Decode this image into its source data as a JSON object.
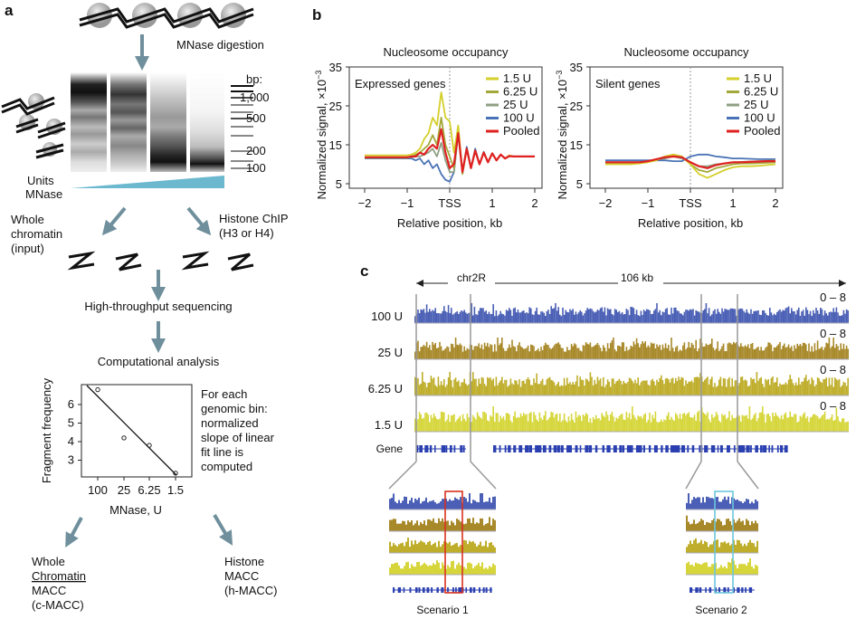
{
  "panel_a": {
    "label": "a",
    "step1": "MNase digestion",
    "ladder_title": "bp:",
    "ladder_marks": [
      "1,000",
      "500",
      "200",
      "100"
    ],
    "units_label": [
      "Units",
      "MNase"
    ],
    "input_label": [
      "Whole",
      "chromatin",
      "(input)"
    ],
    "chip_label": [
      "Histone ChIP",
      "(H3 or H4)"
    ],
    "step2": "High-throughput sequencing",
    "step3": "Computational analysis",
    "description": [
      "For each",
      "genomic bin:",
      "normalized",
      "slope of linear",
      "fit line is",
      "computed"
    ],
    "out_left": [
      "Whole",
      "Chromatin",
      "MACC",
      "(c-MACC)"
    ],
    "out_right": [
      "Histone",
      "MACC",
      "(h-MACC)"
    ],
    "colors": {
      "arrow": "#6f8f9c",
      "wedge": "#6bb8cf"
    }
  },
  "panel_b": {
    "label": "b"
  },
  "panel_c": {
    "label": "c",
    "chrom": "chr2R",
    "span": "106 kb",
    "tracks": [
      {
        "name": "100 U",
        "range": "0 – 8",
        "color": "#4a5fb5"
      },
      {
        "name": "25 U",
        "range": "0 – 8",
        "color": "#a8892a"
      },
      {
        "name": "6.25 U",
        "range": "0 – 8",
        "color": "#bfae2c"
      },
      {
        "name": "1.5 U",
        "range": "0 – 8",
        "color": "#d6d63c"
      }
    ],
    "gene_label": "Gene",
    "gene_color": "#2a3fb0",
    "scenario1": "Scenario 1",
    "scenario2": "Scenario 2",
    "scenario1_color": "#d9301e",
    "scenario2_color": "#6cc6dc"
  },
  "chart_data": [
    {
      "type": "scatter",
      "xlabel": "MNase, U",
      "ylabel": "Fragment frequency",
      "categories": [
        "100",
        "25",
        "6.25",
        "1.5"
      ],
      "values": [
        6.8,
        4.2,
        3.8,
        2.3
      ],
      "yticks": [
        3,
        4,
        5,
        6
      ],
      "fit_line": true
    },
    {
      "type": "line",
      "title": "Nucleosome occupancy",
      "annotation": "Expressed genes",
      "xlabel": "Relative position, kb",
      "ylabel": "Normalized signal, ×10",
      "ylabel_exp": "−3",
      "xticks": [
        "−2",
        "−1",
        "TSS",
        "1",
        "2"
      ],
      "yticks": [
        5,
        15,
        25,
        35
      ],
      "xlim": [
        -2,
        2
      ],
      "ylim": [
        5,
        35
      ],
      "legend": "top-right",
      "x_step": 0.1,
      "series": [
        {
          "name": "1.5 U",
          "color": "#d4cf2a",
          "values": [
            12.3,
            12.3,
            12.3,
            12.3,
            12.3,
            12.3,
            12.3,
            12.3,
            12.3,
            12.3,
            12.3,
            12.5,
            13,
            14,
            16.5,
            18,
            22,
            20,
            28.5,
            22,
            21,
            13,
            20,
            8,
            14,
            9,
            13.5,
            10,
            13,
            10.5,
            12.8,
            11,
            12.5,
            11.5,
            12.3,
            12,
            12,
            12,
            12,
            12,
            12
          ]
        },
        {
          "name": "6.25 U",
          "color": "#a3a83a",
          "values": [
            11.8,
            11.8,
            11.8,
            11.8,
            11.8,
            11.8,
            11.8,
            11.8,
            11.8,
            11.8,
            11.8,
            12,
            12.5,
            13,
            14,
            15,
            17.5,
            15,
            22,
            15,
            12,
            9,
            19,
            7.5,
            14,
            9,
            13.5,
            10,
            13,
            10.5,
            12.8,
            11,
            12.5,
            11.5,
            12.1,
            12,
            12,
            12,
            12,
            12,
            12
          ]
        },
        {
          "name": "25 U",
          "color": "#8fa084",
          "values": [
            11.6,
            11.6,
            11.6,
            11.6,
            11.6,
            11.6,
            11.6,
            11.6,
            11.6,
            11.6,
            11.6,
            11.8,
            12,
            12,
            12.5,
            13,
            14,
            12,
            15.5,
            11,
            8,
            8,
            18,
            7.8,
            14,
            9,
            13.5,
            10,
            13,
            10.5,
            12.8,
            11,
            12.5,
            11.5,
            12.1,
            12,
            12,
            12,
            12,
            12,
            12
          ]
        },
        {
          "name": "100 U",
          "color": "#4a73b5",
          "values": [
            11.5,
            11.5,
            11.5,
            11.5,
            11.5,
            11.5,
            11.5,
            11.5,
            11.5,
            11.5,
            11.5,
            11.5,
            11,
            11.5,
            10,
            11,
            9,
            10,
            7.5,
            6,
            5.5,
            8,
            18,
            8,
            14.5,
            9,
            14,
            10,
            13.2,
            10.5,
            12.8,
            11,
            12.5,
            11.5,
            12.2,
            12,
            12,
            12,
            12,
            12,
            12
          ]
        },
        {
          "name": "Pooled",
          "color": "#e02020",
          "values": [
            11.8,
            11.8,
            11.8,
            11.8,
            11.8,
            11.8,
            11.8,
            11.8,
            11.8,
            11.8,
            11.8,
            12,
            12,
            13,
            12.5,
            14,
            15,
            14,
            19,
            13,
            9,
            10,
            18,
            8,
            14,
            9,
            13.5,
            10,
            13,
            10.5,
            12.8,
            11,
            12.5,
            11.5,
            12.1,
            12,
            12,
            12,
            12,
            12,
            12
          ]
        }
      ]
    },
    {
      "type": "line",
      "title": "Nucleosome occupancy",
      "annotation": "Silent genes",
      "xlabel": "Relative position, kb",
      "ylabel": "Normalized signal, ×10",
      "ylabel_exp": "−3",
      "xticks": [
        "−2",
        "−1",
        "TSS",
        "1",
        "2"
      ],
      "yticks": [
        5,
        15,
        25,
        35
      ],
      "xlim": [
        -2,
        2
      ],
      "ylim": [
        5,
        35
      ],
      "legend": "top-right",
      "x_step": 0.2,
      "series": [
        {
          "name": "1.5 U",
          "color": "#d4cf2a",
          "values": [
            10,
            10,
            10,
            10,
            10.2,
            10.5,
            11,
            12,
            12.5,
            12,
            10,
            7.5,
            6.5,
            7.5,
            8.5,
            9.2,
            9.5,
            9.5,
            9.6,
            9.8,
            10
          ]
        },
        {
          "name": "6.25 U",
          "color": "#a3a83a",
          "values": [
            10.2,
            10.2,
            10.2,
            10.2,
            10.2,
            10.7,
            11.2,
            12,
            12.5,
            12,
            10,
            8.5,
            8,
            9,
            9.5,
            10,
            10.2,
            10.2,
            10.3,
            10.4,
            10.5
          ]
        },
        {
          "name": "25 U",
          "color": "#8fa084",
          "values": [
            10.5,
            10.5,
            10.5,
            10.5,
            10.5,
            10.8,
            11.2,
            11.5,
            12,
            11.5,
            10.5,
            9.5,
            9.5,
            10,
            10.2,
            10.5,
            10.6,
            10.7,
            10.8,
            10.9,
            11
          ]
        },
        {
          "name": "100 U",
          "color": "#4a73b5",
          "values": [
            11,
            11,
            11,
            11,
            11,
            11,
            11,
            11,
            10.8,
            10.8,
            12,
            12.5,
            12.5,
            12,
            11.8,
            11.5,
            11.5,
            11.4,
            11.3,
            11.3,
            11.3
          ]
        },
        {
          "name": "Pooled",
          "color": "#e02020",
          "values": [
            10.5,
            10.5,
            10.5,
            10.5,
            10.5,
            10.8,
            11.3,
            11.8,
            12,
            11.8,
            10.5,
            9.5,
            9,
            9.8,
            10.2,
            10.5,
            10.5,
            10.6,
            10.7,
            10.8,
            10.8
          ]
        }
      ]
    }
  ]
}
